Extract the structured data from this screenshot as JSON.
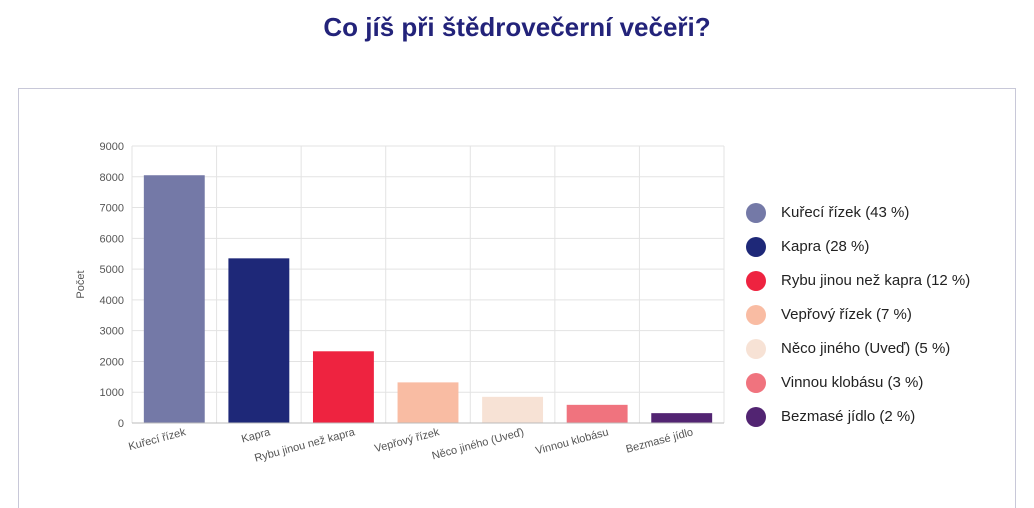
{
  "page": {
    "title": "Co jíš při štědrovečerní večeři?"
  },
  "chart_data": {
    "type": "bar",
    "title": "",
    "xlabel": "",
    "ylabel": "Počet",
    "ylim": [
      0,
      9000
    ],
    "yticks": [
      0,
      1000,
      2000,
      3000,
      4000,
      5000,
      6000,
      7000,
      8000,
      9000
    ],
    "grid": true,
    "legend_position": "right",
    "categories": [
      "Kuřecí řízek",
      "Kapra",
      "Rybu jinou než kapra",
      "Vepřový řízek",
      "Něco jiného (Uveď)",
      "Vinnou klobásu",
      "Bezmasé jídlo"
    ],
    "values": [
      8050,
      5350,
      2330,
      1320,
      850,
      590,
      320
    ],
    "colors": [
      "#7479a7",
      "#1e2878",
      "#ee2340",
      "#f9bca3",
      "#f7e2d5",
      "#f0737e",
      "#522472"
    ],
    "legend": [
      "Kuřecí řízek (43 %)",
      "Kapra (28 %)",
      "Rybu jinou než kapra (12 %)",
      "Vepřový řízek (7 %)",
      "Něco jiného (Uveď) (5 %)",
      "Vinnou klobásu (3 %)",
      "Bezmasé jídlo (2 %)"
    ]
  }
}
